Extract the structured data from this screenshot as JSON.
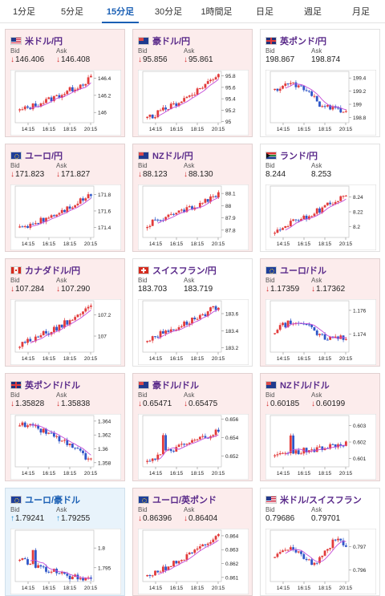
{
  "tabs": [
    {
      "label": "1分足",
      "active": false
    },
    {
      "label": "5分足",
      "active": false
    },
    {
      "label": "15分足",
      "active": true
    },
    {
      "label": "30分足",
      "active": false
    },
    {
      "label": "1時間足",
      "active": false
    },
    {
      "label": "日足",
      "active": false
    },
    {
      "label": "週足",
      "active": false
    },
    {
      "label": "月足",
      "active": false
    }
  ],
  "labels": {
    "bid": "Bid",
    "ask": "Ask"
  },
  "arrows": {
    "down": "↓",
    "up": "↑"
  },
  "colors": {
    "bg_down": "#fcecec",
    "bg_up": "#e8f3fb",
    "bg_flat": "#ffffff",
    "candle_up": "#e23b3b",
    "candle_down": "#2f56c8",
    "ma": "#c44bd8",
    "arrow_down": "#d22a2a",
    "arrow_up": "#1a8bd2"
  },
  "pairs": [
    {
      "name": "米ドル/円",
      "flag": "us-flag-icon",
      "bid": "146.406",
      "ask": "146.408",
      "trend": "down",
      "arrows": true,
      "chart_data": {
        "type": "candlestick",
        "x_ticks": [
          "14:15",
          "16:15",
          "18:15",
          "20:15"
        ],
        "y_ticks": [
          "146.4",
          "146.2",
          "146"
        ],
        "ylim": [
          145.88,
          146.48
        ],
        "start": 146.02,
        "end": 146.4,
        "shape": "uptrend"
      }
    },
    {
      "name": "豪ドル/円",
      "flag": "au-flag-icon",
      "bid": "95.856",
      "ask": "95.861",
      "trend": "down",
      "arrows": true,
      "chart_data": {
        "type": "candlestick",
        "x_ticks": [
          "14:15",
          "16:15",
          "18:15",
          "20:15"
        ],
        "y_ticks": [
          "95.8",
          "95.6",
          "95.4",
          "95.2",
          "95"
        ],
        "ylim": [
          94.98,
          95.88
        ],
        "start": 95.05,
        "end": 95.85,
        "shape": "uptrend"
      }
    },
    {
      "name": "英ポンド/円",
      "flag": "gb-flag-icon",
      "bid": "198.867",
      "ask": "198.874",
      "trend": "flat",
      "arrows": false,
      "chart_data": {
        "type": "candlestick",
        "x_ticks": [
          "14:15",
          "16:15",
          "18:15",
          "20:15"
        ],
        "y_ticks": [
          "199.4",
          "199.2",
          "199",
          "198.8"
        ],
        "ylim": [
          198.72,
          199.5
        ],
        "start": 199.2,
        "end": 198.87,
        "shape": "humpdown"
      }
    },
    {
      "name": "ユーロ/円",
      "flag": "eu-flag-icon",
      "bid": "171.823",
      "ask": "171.827",
      "trend": "down",
      "arrows": true,
      "chart_data": {
        "type": "candlestick",
        "x_ticks": [
          "14:15",
          "16:15",
          "18:15",
          "20:15"
        ],
        "y_ticks": [
          "171.8",
          "171.6",
          "171.4"
        ],
        "ylim": [
          171.28,
          171.9
        ],
        "start": 171.38,
        "end": 171.8,
        "shape": "uptrend"
      }
    },
    {
      "name": "NZドル/円",
      "flag": "nz-flag-icon",
      "bid": "88.123",
      "ask": "88.130",
      "trend": "down",
      "arrows": true,
      "chart_data": {
        "type": "candlestick",
        "x_ticks": [
          "14:15",
          "16:15",
          "18:15",
          "20:15"
        ],
        "y_ticks": [
          "88.1",
          "88",
          "87.9",
          "87.8"
        ],
        "ylim": [
          87.74,
          88.16
        ],
        "start": 87.85,
        "end": 88.1,
        "shape": "uptrend"
      }
    },
    {
      "name": "ランド/円",
      "flag": "za-flag-icon",
      "bid": "8.244",
      "ask": "8.253",
      "trend": "flat",
      "arrows": false,
      "chart_data": {
        "type": "candlestick",
        "x_ticks": [
          "14:15",
          "16:15",
          "18:15",
          "20:15"
        ],
        "y_ticks": [
          "8.24",
          "8.22",
          "8.2"
        ],
        "ylim": [
          8.185,
          8.255
        ],
        "start": 8.195,
        "end": 8.245,
        "shape": "uptrend"
      }
    },
    {
      "name": "カナダドル/円",
      "flag": "ca-flag-icon",
      "bid": "107.284",
      "ask": "107.290",
      "trend": "down",
      "arrows": true,
      "chart_data": {
        "type": "candlestick",
        "x_ticks": [
          "14:15",
          "16:15",
          "18:15",
          "20:15"
        ],
        "y_ticks": [
          "107.2",
          "107"
        ],
        "ylim": [
          106.85,
          107.33
        ],
        "start": 106.92,
        "end": 107.28,
        "shape": "uptrend"
      }
    },
    {
      "name": "スイスフラン/円",
      "flag": "ch-flag-icon",
      "bid": "183.703",
      "ask": "183.719",
      "trend": "flat",
      "arrows": false,
      "chart_data": {
        "type": "candlestick",
        "x_ticks": [
          "14:15",
          "16:15",
          "18:15",
          "20:15"
        ],
        "y_ticks": [
          "183.6",
          "183.4",
          "183.2"
        ],
        "ylim": [
          183.15,
          183.75
        ],
        "start": 183.3,
        "end": 183.7,
        "shape": "uptrend"
      }
    },
    {
      "name": "ユーロ/ドル",
      "flag": "eu-flag-icon",
      "bid": "1.17359",
      "ask": "1.17362",
      "trend": "down",
      "arrows": true,
      "chart_data": {
        "type": "candlestick",
        "x_ticks": [
          "14:15",
          "16:15",
          "18:15",
          "20:15"
        ],
        "y_ticks": [
          "1.176",
          "1.174"
        ],
        "ylim": [
          1.1725,
          1.1768
        ],
        "start": 1.1742,
        "end": 1.1736,
        "shape": "humpdown"
      }
    },
    {
      "name": "英ポンド/ドル",
      "flag": "gb-flag-icon",
      "bid": "1.35828",
      "ask": "1.35838",
      "trend": "down",
      "arrows": true,
      "chart_data": {
        "type": "candlestick",
        "x_ticks": [
          "14:15",
          "16:15",
          "18:15",
          "20:15"
        ],
        "y_ticks": [
          "1.364",
          "1.362",
          "1.36",
          "1.358"
        ],
        "ylim": [
          1.3574,
          1.3648
        ],
        "start": 1.3635,
        "end": 1.3582,
        "shape": "downtrend"
      }
    },
    {
      "name": "豪ドル/ドル",
      "flag": "au-flag-icon",
      "bid": "0.65471",
      "ask": "0.65475",
      "trend": "down",
      "arrows": true,
      "chart_data": {
        "type": "candlestick",
        "x_ticks": [
          "14:15",
          "16:15",
          "18:15",
          "20:15"
        ],
        "y_ticks": [
          "0.656",
          "0.654",
          "0.652"
        ],
        "ylim": [
          0.6508,
          0.6564
        ],
        "start": 0.6515,
        "end": 0.6547,
        "shape": "spikeup"
      }
    },
    {
      "name": "NZドル/ドル",
      "flag": "nz-flag-icon",
      "bid": "0.60185",
      "ask": "0.60199",
      "trend": "down",
      "arrows": true,
      "chart_data": {
        "type": "candlestick",
        "x_ticks": [
          "14:15",
          "16:15",
          "18:15",
          "20:15"
        ],
        "y_ticks": [
          "0.603",
          "0.602",
          "0.601"
        ],
        "ylim": [
          0.6005,
          0.6036
        ],
        "start": 0.6012,
        "end": 0.6019,
        "shape": "spikeup"
      }
    },
    {
      "name": "ユーロ/豪ドル",
      "flag": "eu-flag-icon",
      "bid": "1.79241",
      "ask": "1.79255",
      "trend": "up",
      "arrows": true,
      "chart_data": {
        "type": "candlestick",
        "x_ticks": [
          "14:15",
          "16:15",
          "18:15",
          "20:15"
        ],
        "y_ticks": [
          "1.8",
          "1.795"
        ],
        "ylim": [
          1.7915,
          1.8045
        ],
        "start": 1.8,
        "end": 1.7925,
        "shape": "spikedown"
      }
    },
    {
      "name": "ユーロ/英ポンド",
      "flag": "eu-flag-icon",
      "bid": "0.86396",
      "ask": "0.86404",
      "trend": "down",
      "arrows": true,
      "chart_data": {
        "type": "candlestick",
        "x_ticks": [
          "14:15",
          "16:15",
          "18:15",
          "20:15"
        ],
        "y_ticks": [
          "0.864",
          "0.863",
          "0.862",
          "0.861"
        ],
        "ylim": [
          0.8607,
          0.8644
        ],
        "start": 0.8611,
        "end": 0.864,
        "shape": "uptrend"
      }
    },
    {
      "name": "米ドル/スイスフラン",
      "flag": "us-flag-icon",
      "bid": "0.79686",
      "ask": "0.79701",
      "trend": "flat",
      "arrows": false,
      "chart_data": {
        "type": "candlestick",
        "x_ticks": [
          "14:15",
          "16:15",
          "18:15",
          "20:15"
        ],
        "y_ticks": [
          "0.797",
          "0.796"
        ],
        "ylim": [
          0.7955,
          0.7977
        ],
        "start": 0.7965,
        "end": 0.7969,
        "shape": "choppy"
      }
    }
  ]
}
